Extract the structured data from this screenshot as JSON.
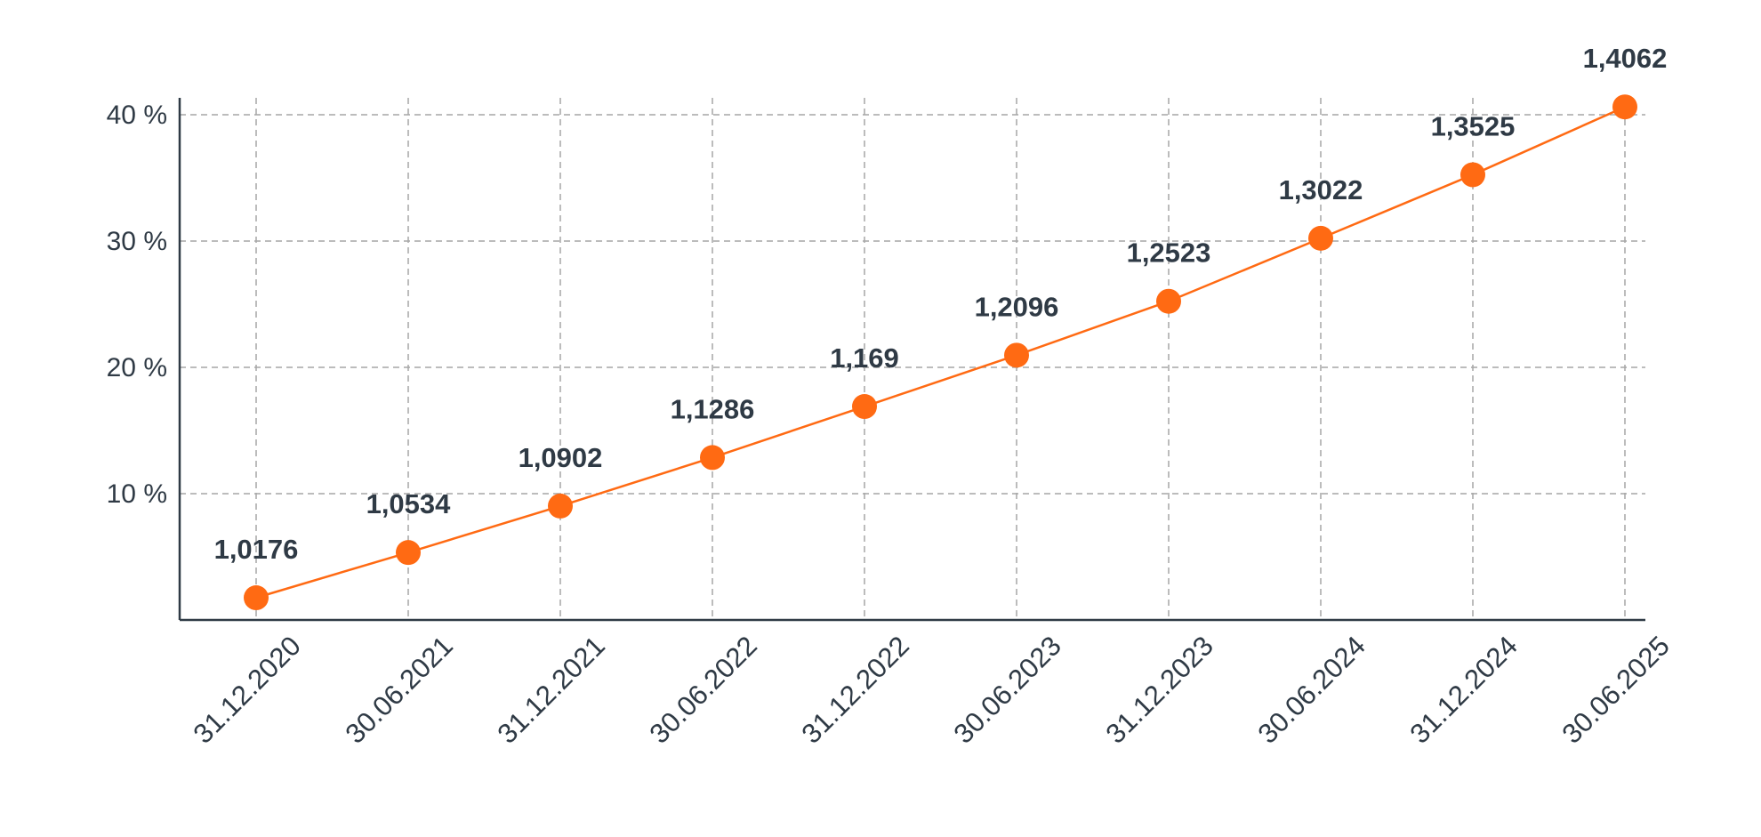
{
  "chart_data": {
    "type": "line",
    "title": "",
    "xlabel": "",
    "ylabel": "",
    "categories": [
      "31.12.2020",
      "30.06.2021",
      "31.12.2021",
      "30.06.2022",
      "31.12.2022",
      "30.06.2023",
      "31.12.2023",
      "30.06.2024",
      "31.12.2024",
      "30.06.2025"
    ],
    "series": [
      {
        "values": [
          1.0176,
          1.0534,
          1.0902,
          1.1286,
          1.169,
          1.2096,
          1.2523,
          1.3022,
          1.3525,
          1.4062
        ],
        "labels": [
          "1,0176",
          "1,0534",
          "1,0902",
          "1,1286",
          "1,169",
          "1,2096",
          "1,2523",
          "1,3022",
          "1,3525",
          "1,4062"
        ],
        "color": "#ff6a13"
      }
    ],
    "y_axis": {
      "ticks": [
        10,
        20,
        30,
        40
      ],
      "tick_labels": [
        "10 %",
        "20 %",
        "30 %",
        "40 %"
      ],
      "unit": "%",
      "range": [
        0,
        40
      ]
    },
    "grid": true,
    "legend": "none",
    "colors": {
      "line": "#ff6a13",
      "marker": "#ff6a13",
      "grid": "#a6a6a6",
      "axis": "#2f3a45",
      "text": "#2f3a45"
    }
  }
}
